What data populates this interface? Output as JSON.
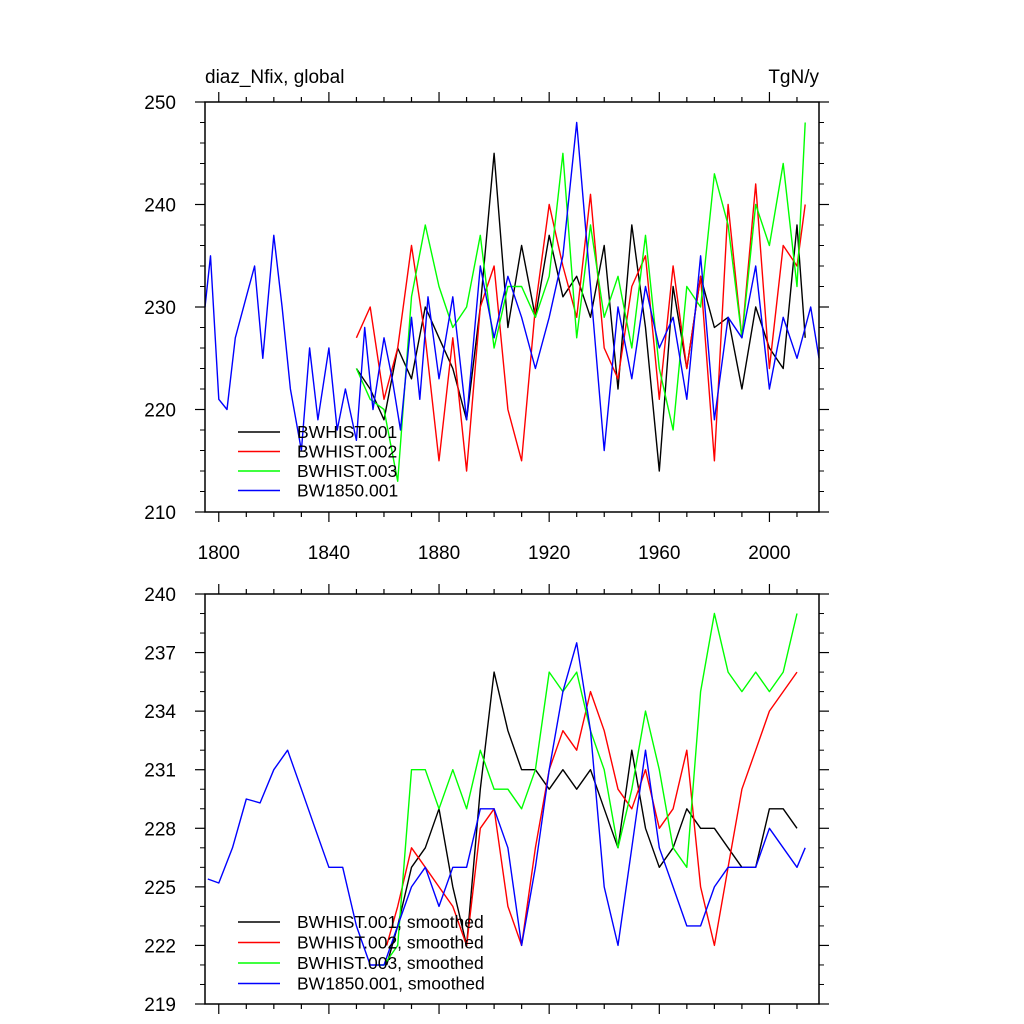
{
  "chart_data": [
    {
      "type": "line",
      "title_left": "diaz_Nfix, global",
      "title_right": "TgN/y",
      "xlim": [
        1795,
        2018
      ],
      "ylim": [
        210,
        250
      ],
      "xticks": [
        1800,
        1840,
        1880,
        1920,
        1960,
        2000
      ],
      "xtick_labels": [
        "1800",
        "1840",
        "1880",
        "1920",
        "1960",
        "2000"
      ],
      "yticks": [
        210,
        220,
        230,
        240,
        250
      ],
      "ytick_labels": [
        "210",
        "220",
        "230",
        "240",
        "250"
      ],
      "legend_position": "bottom-left",
      "series": [
        {
          "name": "BWHIST.001",
          "color": "#000000",
          "x": [
            1850,
            1855,
            1860,
            1865,
            1870,
            1875,
            1880,
            1885,
            1890,
            1895,
            1900,
            1905,
            1910,
            1915,
            1920,
            1925,
            1930,
            1935,
            1940,
            1945,
            1950,
            1955,
            1960,
            1965,
            1970,
            1975,
            1980,
            1985,
            1990,
            1995,
            2000,
            2005,
            2010,
            2013
          ],
          "y": [
            224,
            222,
            219,
            226,
            223,
            230,
            227,
            224,
            219,
            230,
            245,
            228,
            236,
            229,
            237,
            231,
            233,
            229,
            236,
            222,
            238,
            228,
            214,
            232,
            224,
            233,
            228,
            229,
            222,
            230,
            226,
            224,
            238,
            227
          ]
        },
        {
          "name": "BWHIST.002",
          "color": "#ff0000",
          "x": [
            1850,
            1855,
            1860,
            1865,
            1870,
            1875,
            1880,
            1885,
            1890,
            1895,
            1900,
            1905,
            1910,
            1915,
            1920,
            1925,
            1930,
            1935,
            1940,
            1945,
            1950,
            1955,
            1960,
            1965,
            1970,
            1975,
            1980,
            1985,
            1990,
            1995,
            2000,
            2005,
            2010,
            2013
          ],
          "y": [
            227,
            230,
            221,
            226,
            236,
            227,
            215,
            227,
            214,
            230,
            234,
            220,
            215,
            230,
            240,
            234,
            229,
            241,
            226,
            223,
            232,
            235,
            221,
            234,
            224,
            233,
            215,
            240,
            227,
            242,
            224,
            236,
            234,
            240
          ]
        },
        {
          "name": "BWHIST.003",
          "color": "#00ff00",
          "x": [
            1850,
            1855,
            1860,
            1865,
            1870,
            1875,
            1880,
            1885,
            1890,
            1895,
            1900,
            1905,
            1910,
            1915,
            1920,
            1925,
            1930,
            1935,
            1940,
            1945,
            1950,
            1955,
            1960,
            1965,
            1970,
            1975,
            1980,
            1985,
            1990,
            1995,
            2000,
            2005,
            2010,
            2013
          ],
          "y": [
            224,
            221,
            220,
            213,
            231,
            238,
            232,
            228,
            230,
            237,
            226,
            232,
            232,
            229,
            233,
            245,
            227,
            238,
            229,
            233,
            226,
            237,
            224,
            218,
            232,
            230,
            243,
            238,
            227,
            240,
            236,
            244,
            232,
            248
          ]
        },
        {
          "name": "BW1850.001",
          "color": "#0000ff",
          "x": [
            1795,
            1797,
            1800,
            1803,
            1806,
            1810,
            1813,
            1816,
            1820,
            1823,
            1826,
            1830,
            1833,
            1836,
            1840,
            1843,
            1846,
            1850,
            1853,
            1856,
            1860,
            1863,
            1866,
            1870,
            1873,
            1876,
            1880,
            1885,
            1890,
            1895,
            1900,
            1905,
            1910,
            1915,
            1920,
            1925,
            1930,
            1935,
            1940,
            1945,
            1950,
            1955,
            1960,
            1965,
            1970,
            1975,
            1980,
            1985,
            1990,
            1995,
            2000,
            2005,
            2010,
            2015,
            2018
          ],
          "y": [
            230,
            235,
            221,
            220,
            227,
            231,
            234,
            225,
            237,
            230,
            222,
            216,
            226,
            219,
            226,
            218,
            222,
            217,
            228,
            220,
            227,
            223,
            218,
            229,
            221,
            231,
            223,
            231,
            219,
            234,
            227,
            233,
            229,
            224,
            229,
            235,
            248,
            232,
            216,
            230,
            223,
            232,
            226,
            229,
            221,
            235,
            219,
            229,
            227,
            234,
            222,
            229,
            225,
            230,
            225
          ]
        }
      ]
    },
    {
      "type": "line",
      "xlim": [
        1795,
        2018
      ],
      "ylim": [
        219,
        240
      ],
      "yticks": [
        219,
        222,
        225,
        228,
        231,
        234,
        237,
        240
      ],
      "ytick_labels": [
        "219",
        "222",
        "225",
        "228",
        "231",
        "234",
        "237",
        "240"
      ],
      "legend_position": "bottom-left",
      "series": [
        {
          "name": "BWHIST.001, smoothed",
          "color": "#000000",
          "x": [
            1861,
            1865,
            1870,
            1875,
            1880,
            1885,
            1890,
            1895,
            1900,
            1905,
            1910,
            1915,
            1920,
            1925,
            1930,
            1935,
            1940,
            1945,
            1950,
            1955,
            1960,
            1965,
            1970,
            1975,
            1980,
            1985,
            1990,
            1995,
            2000,
            2005,
            2010
          ],
          "y": [
            221,
            223,
            226,
            227,
            229,
            225,
            222,
            230,
            236,
            233,
            231,
            231,
            230,
            231,
            230,
            231,
            229,
            227,
            232,
            228,
            226,
            227,
            229,
            228,
            228,
            227,
            226,
            226,
            229,
            229,
            228
          ]
        },
        {
          "name": "BWHIST.002, smoothed",
          "color": "#ff0000",
          "x": [
            1861,
            1865,
            1870,
            1875,
            1880,
            1885,
            1890,
            1895,
            1900,
            1905,
            1910,
            1915,
            1920,
            1925,
            1930,
            1935,
            1940,
            1945,
            1950,
            1955,
            1960,
            1965,
            1970,
            1975,
            1980,
            1985,
            1990,
            1995,
            2000,
            2005,
            2010
          ],
          "y": [
            222,
            224,
            227,
            226,
            225,
            224,
            222,
            228,
            229,
            224,
            222,
            227,
            231,
            233,
            232,
            235,
            233,
            230,
            229,
            231,
            228,
            229,
            232,
            225,
            222,
            226,
            230,
            232,
            234,
            235,
            236
          ]
        },
        {
          "name": "BWHIST.003, smoothed",
          "color": "#00ff00",
          "x": [
            1858,
            1860,
            1865,
            1870,
            1875,
            1880,
            1885,
            1890,
            1895,
            1900,
            1905,
            1910,
            1915,
            1920,
            1925,
            1930,
            1935,
            1940,
            1945,
            1950,
            1955,
            1960,
            1965,
            1970,
            1975,
            1980,
            1985,
            1990,
            1995,
            2000,
            2005,
            2010
          ],
          "y": [
            221,
            221,
            222,
            231,
            231,
            229,
            231,
            229,
            232,
            230,
            230,
            229,
            231,
            236,
            235,
            236,
            233,
            231,
            227,
            230,
            234,
            231,
            227,
            226,
            235,
            239,
            236,
            235,
            236,
            235,
            236,
            239
          ]
        },
        {
          "name": "BW1850.001, smoothed",
          "color": "#0000ff",
          "x": [
            1796,
            1800,
            1805,
            1810,
            1815,
            1820,
            1825,
            1830,
            1835,
            1840,
            1845,
            1850,
            1855,
            1860,
            1865,
            1870,
            1875,
            1880,
            1885,
            1890,
            1895,
            1900,
            1905,
            1910,
            1915,
            1920,
            1925,
            1930,
            1935,
            1940,
            1945,
            1950,
            1955,
            1960,
            1965,
            1970,
            1975,
            1980,
            1985,
            1990,
            1995,
            2000,
            2005,
            2010,
            2013
          ],
          "y": [
            225.4,
            225.2,
            227,
            229.5,
            229.3,
            231,
            232,
            230,
            228,
            226,
            226,
            223,
            221,
            221,
            223,
            225,
            226,
            224,
            226,
            226,
            229,
            229,
            227,
            222,
            226,
            231,
            235,
            237.5,
            233,
            225,
            222,
            227,
            232,
            227,
            225,
            223,
            223,
            225,
            226,
            226,
            226,
            228,
            227,
            226,
            227
          ]
        }
      ]
    }
  ]
}
